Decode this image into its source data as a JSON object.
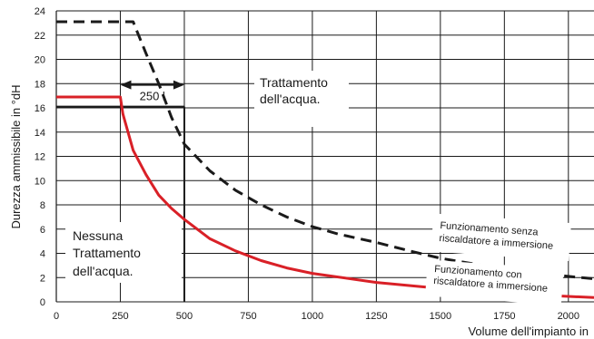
{
  "chart_data": {
    "type": "line",
    "title": "",
    "xlabel": "Volume dell'impianto in",
    "ylabel": "Durezza ammissibile in °dH",
    "xlim": [
      0,
      2100
    ],
    "ylim": [
      0,
      24
    ],
    "x_ticks": [
      0,
      250,
      500,
      750,
      1000,
      1250,
      1500,
      1750,
      2000
    ],
    "y_ticks": [
      0,
      2,
      4,
      6,
      8,
      10,
      12,
      14,
      16,
      18,
      20,
      22,
      24
    ],
    "x_tick_labels": [
      "0",
      "250",
      "500",
      "750",
      "1000",
      "1250",
      "1500",
      "1750",
      "2000"
    ],
    "y_tick_labels": [
      "0",
      "2",
      "4",
      "6",
      "8",
      "10",
      "12",
      "14",
      "16",
      "18",
      "20",
      "22",
      "24"
    ],
    "grid": true,
    "series": [
      {
        "name": "Funzionamento senza riscaldatore a immersione",
        "style": "dashed",
        "color": "#1a1a1a",
        "points": [
          [
            0,
            23.1
          ],
          [
            300,
            23.1
          ],
          [
            350,
            20.5
          ],
          [
            400,
            18
          ],
          [
            450,
            15.2
          ],
          [
            500,
            13
          ],
          [
            600,
            10.8
          ],
          [
            700,
            9.2
          ],
          [
            800,
            8
          ],
          [
            900,
            7
          ],
          [
            1000,
            6.2
          ],
          [
            1100,
            5.6
          ],
          [
            1250,
            4.9
          ],
          [
            1400,
            4.1
          ],
          [
            1500,
            3.6
          ],
          [
            1750,
            2.7
          ],
          [
            2000,
            2.1
          ],
          [
            2100,
            1.9
          ]
        ]
      },
      {
        "name": "Funzionamento con riscaldatore a immersione",
        "style": "solid",
        "color": "#d92027",
        "points": [
          [
            0,
            16.9
          ],
          [
            250,
            16.9
          ],
          [
            260,
            15.5
          ],
          [
            300,
            12.5
          ],
          [
            350,
            10.5
          ],
          [
            400,
            8.8
          ],
          [
            450,
            7.7
          ],
          [
            500,
            6.8
          ],
          [
            600,
            5.2
          ],
          [
            700,
            4.2
          ],
          [
            800,
            3.4
          ],
          [
            900,
            2.8
          ],
          [
            1000,
            2.35
          ],
          [
            1250,
            1.6
          ],
          [
            1500,
            1.1
          ],
          [
            1750,
            0.7
          ],
          [
            2000,
            0.45
          ],
          [
            2100,
            0.35
          ]
        ]
      }
    ],
    "reference_lines": [
      {
        "type": "horizontal",
        "y": 16.1,
        "x_from": 0,
        "x_to": 500
      },
      {
        "type": "vertical",
        "x": 500,
        "y_from": 0,
        "y_to": 16.1
      }
    ],
    "annotations": {
      "dimension_label": "250 l",
      "dimension_from": 250,
      "dimension_to": 500,
      "dimension_y": 17.9,
      "region_treatment": [
        "Trattamento",
        "dell'acqua."
      ],
      "region_no_treatment": [
        "Nessuna",
        "Trattamento",
        "dell'acqua."
      ],
      "curve_label_without": [
        "Funzionamento senza",
        "riscaldatore a immersione"
      ],
      "curve_label_with": [
        "Funzionamento con",
        "riscaldatore a immersione"
      ]
    }
  }
}
